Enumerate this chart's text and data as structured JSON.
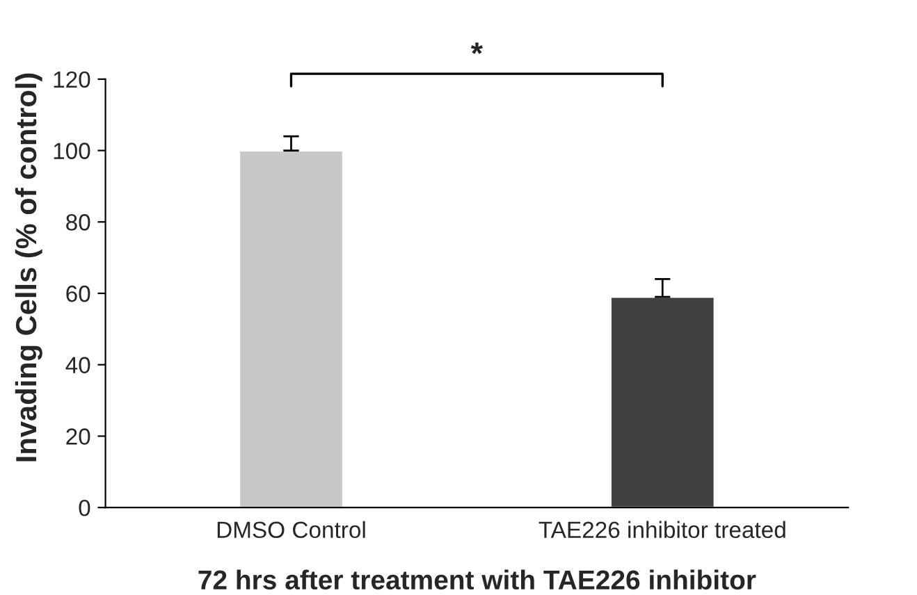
{
  "chart_data": {
    "type": "bar",
    "categories": [
      "DMSO Control",
      "TAE226 inhibitor treated"
    ],
    "values": [
      100,
      59
    ],
    "colors": [
      "#c8c8c8",
      "#404040"
    ],
    "errors": [
      [
        100,
        104
      ],
      [
        59,
        64
      ]
    ],
    "xlabel": "72 hrs after treatment with TAE226 inhibitor",
    "ylabel": "Invading Cells (% of control)",
    "ylim": [
      0,
      120
    ],
    "yticks": [
      0,
      20,
      40,
      60,
      80,
      100,
      120
    ],
    "annotations": [
      "*"
    ],
    "grid": false,
    "legend": false
  }
}
